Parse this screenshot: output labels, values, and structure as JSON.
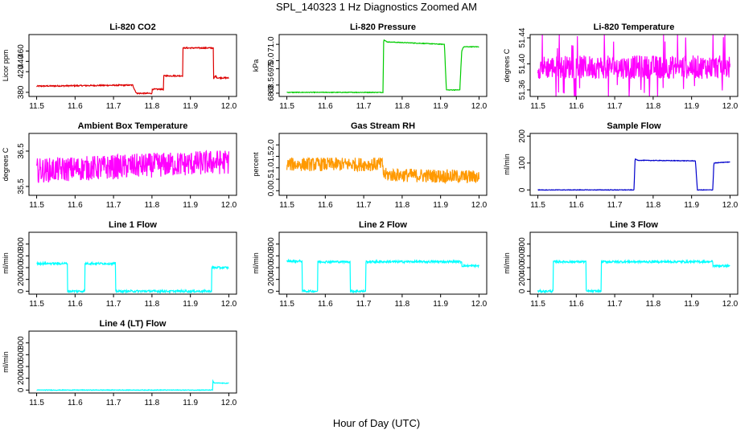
{
  "figure": {
    "title": "SPL_140323  1 Hz Diagnostics Zoomed AM",
    "xlabel": "Hour of Day (UTC)"
  },
  "chart_data": [
    {
      "type": "line",
      "title": "Li-820 CO2",
      "ylabel": "Licor ppm",
      "color": "#dd0000",
      "xlim": [
        11.48,
        12.02
      ],
      "ylim": [
        372,
        492
      ],
      "xticks": [
        "11.5",
        "11.6",
        "11.7",
        "11.8",
        "11.9",
        "12.0"
      ],
      "yticks": [
        "380",
        "420",
        "440",
        "460"
      ],
      "series": [
        {
          "x": [
            11.5,
            11.75,
            11.755,
            11.76,
            11.8,
            11.8,
            11.83,
            11.83,
            11.88,
            11.88,
            11.96,
            11.96,
            11.965,
            11.97,
            12.0
          ],
          "y": [
            392,
            394,
            385,
            378,
            378,
            386,
            386,
            412,
            412,
            466,
            466,
            405,
            412,
            408,
            408
          ],
          "noise": 1.2
        }
      ]
    },
    {
      "type": "line",
      "title": "Li-820 Pressure",
      "ylabel": "kPa",
      "color": "#00cc00",
      "xlim": [
        11.48,
        12.02
      ],
      "ylim": [
        67.8,
        71.6
      ],
      "xticks": [
        "11.5",
        "11.6",
        "11.7",
        "11.8",
        "11.9",
        "12.0"
      ],
      "yticks": [
        "68.0",
        "68.5",
        "69.5",
        "70.0",
        "71.0"
      ],
      "series": [
        {
          "x": [
            11.5,
            11.75,
            11.752,
            11.76,
            11.91,
            11.915,
            11.95,
            11.955,
            11.96,
            12.0
          ],
          "y": [
            68.05,
            68.05,
            71.3,
            71.15,
            71.0,
            68.2,
            68.2,
            70.6,
            70.85,
            70.85
          ],
          "noise": 0.02
        }
      ]
    },
    {
      "type": "line",
      "title": "Li-820 Temperature",
      "ylabel": "degrees C",
      "color": "#ff00ff",
      "xlim": [
        11.48,
        12.02
      ],
      "ylim": [
        51.35,
        51.445
      ],
      "xticks": [
        "11.5",
        "11.6",
        "11.7",
        "11.8",
        "11.9",
        "12.0"
      ],
      "yticks": [
        "51.36",
        "51.40",
        "51.44"
      ],
      "series": [
        {
          "x": [
            11.5,
            12.0
          ],
          "y": [
            51.395,
            51.395
          ],
          "noise": 0.018,
          "spikes": 0.045
        }
      ]
    },
    {
      "type": "line",
      "title": "Ambient Box Temperature",
      "ylabel": "degrees C",
      "color": "#ff00ff",
      "xlim": [
        11.48,
        12.02
      ],
      "ylim": [
        35.25,
        37.0
      ],
      "xticks": [
        "11.5",
        "11.6",
        "11.7",
        "11.8",
        "11.9",
        "12.0"
      ],
      "yticks": [
        "35.5",
        "36.5"
      ],
      "series": [
        {
          "x": [
            11.5,
            12.0
          ],
          "y": [
            35.95,
            36.2
          ],
          "noise": 0.35
        }
      ]
    },
    {
      "type": "line",
      "title": "Gas Stream RH",
      "ylabel": "percent",
      "color": "#ff9900",
      "xlim": [
        11.48,
        12.02
      ],
      "ylim": [
        -0.2,
        2.5
      ],
      "xticks": [
        "11.5",
        "11.6",
        "11.7",
        "11.8",
        "11.9",
        "12.0"
      ],
      "yticks": [
        "0.0",
        "0.5",
        "1.0",
        "1.5",
        "2.0"
      ],
      "series": [
        {
          "x": [
            11.5,
            11.75,
            11.75,
            12.0
          ],
          "y": [
            1.15,
            1.15,
            0.7,
            0.6
          ],
          "noise": 0.3
        }
      ]
    },
    {
      "type": "line",
      "title": "Sample Flow",
      "ylabel": "ml/min",
      "color": "#0000cc",
      "xlim": [
        11.48,
        12.02
      ],
      "ylim": [
        -20,
        210
      ],
      "xticks": [
        "11.5",
        "11.6",
        "11.7",
        "11.8",
        "11.9",
        "12.0"
      ],
      "yticks": [
        "0",
        "100",
        "200"
      ],
      "series": [
        {
          "x": [
            11.5,
            11.75,
            11.753,
            11.76,
            11.91,
            11.915,
            11.955,
            11.958,
            12.0
          ],
          "y": [
            0,
            0,
            115,
            110,
            108,
            0,
            0,
            100,
            104
          ],
          "noise": 1.0
        }
      ]
    },
    {
      "type": "line",
      "title": "Line 1 Flow",
      "ylabel": "ml/min",
      "color": "#00ffff",
      "xlim": [
        11.48,
        12.02
      ],
      "ylim": [
        -50,
        1000
      ],
      "xticks": [
        "11.5",
        "11.6",
        "11.7",
        "11.8",
        "11.9",
        "12.0"
      ],
      "yticks": [
        "0",
        "200",
        "400",
        "600",
        "800"
      ],
      "series": [
        {
          "x": [
            11.5,
            11.58,
            11.58,
            11.625,
            11.625,
            11.705,
            11.705,
            11.955,
            11.955,
            12.0
          ],
          "y": [
            470,
            470,
            0,
            0,
            470,
            470,
            0,
            0,
            400,
            400
          ],
          "noise": 18
        }
      ]
    },
    {
      "type": "line",
      "title": "Line 2 Flow",
      "ylabel": "ml/min",
      "color": "#00ffff",
      "xlim": [
        11.48,
        12.02
      ],
      "ylim": [
        -50,
        1000
      ],
      "xticks": [
        "11.5",
        "11.6",
        "11.7",
        "11.8",
        "11.9",
        "12.0"
      ],
      "yticks": [
        "0",
        "200",
        "400",
        "600",
        "800"
      ],
      "series": [
        {
          "x": [
            11.5,
            11.54,
            11.54,
            11.58,
            11.58,
            11.665,
            11.665,
            11.705,
            11.705,
            11.955,
            11.955,
            12.0
          ],
          "y": [
            510,
            510,
            0,
            0,
            500,
            500,
            0,
            0,
            500,
            500,
            430,
            430
          ],
          "noise": 18
        }
      ]
    },
    {
      "type": "line",
      "title": "Line 3 Flow",
      "ylabel": "ml/min",
      "color": "#00ffff",
      "xlim": [
        11.48,
        12.02
      ],
      "ylim": [
        -50,
        1000
      ],
      "xticks": [
        "11.5",
        "11.6",
        "11.7",
        "11.8",
        "11.9",
        "12.0"
      ],
      "yticks": [
        "0",
        "200",
        "400",
        "600",
        "800"
      ],
      "series": [
        {
          "x": [
            11.5,
            11.54,
            11.54,
            11.625,
            11.625,
            11.665,
            11.665,
            11.955,
            11.955,
            12.0
          ],
          "y": [
            0,
            0,
            500,
            500,
            0,
            0,
            500,
            500,
            430,
            430
          ],
          "noise": 18
        }
      ]
    },
    {
      "type": "line",
      "title": "Line 4 (LT) Flow",
      "ylabel": "ml/min",
      "color": "#00ffff",
      "xlim": [
        11.48,
        12.02
      ],
      "ylim": [
        -50,
        1000
      ],
      "xticks": [
        "11.5",
        "11.6",
        "11.7",
        "11.8",
        "11.9",
        "12.0"
      ],
      "yticks": [
        "0",
        "200",
        "400",
        "600",
        "800"
      ],
      "series": [
        {
          "x": [
            11.5,
            11.958,
            11.958,
            11.962,
            12.0
          ],
          "y": [
            0,
            0,
            160,
            120,
            115
          ],
          "noise": 5
        }
      ]
    }
  ]
}
